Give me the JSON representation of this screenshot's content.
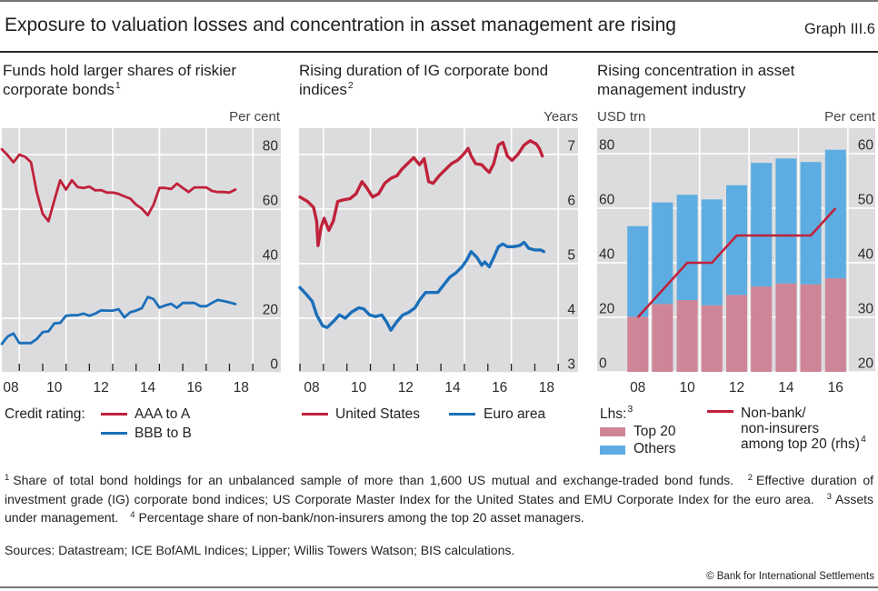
{
  "header": {
    "title": "Exposure to valuation losses and concentration in asset management are rising",
    "graph_id": "Graph III.6"
  },
  "panels": [
    {
      "title_lines": [
        "Funds hold larger shares of riskier",
        "corporate bonds"
      ],
      "title_sup": "1",
      "unit_right": "Per cent"
    },
    {
      "title_lines": [
        "Rising duration of IG corporate bond",
        "indices"
      ],
      "title_sup": "2",
      "unit_right": "Years"
    },
    {
      "title_lines": [
        "Rising concentration in asset",
        "management industry"
      ],
      "title_sup": "",
      "unit_left": "USD trn",
      "unit_right": "Per cent"
    }
  ],
  "chart_data": [
    {
      "type": "line",
      "title": "Funds hold larger shares of riskier corporate bonds",
      "xlabel": "",
      "ylabel": "Per cent",
      "y_axis_side": "right",
      "xlim": [
        2008.25,
        2020.2
      ],
      "ylim": [
        0,
        89.7
      ],
      "yticks": [
        0,
        20,
        40,
        60,
        80
      ],
      "ytick_labels": [
        "0",
        "20",
        "40",
        "60",
        "80"
      ],
      "xgrid": [
        2009,
        2011,
        2013,
        2015,
        2017,
        2019
      ],
      "xticks": [
        2009,
        2010,
        2011,
        2012,
        2013,
        2014,
        2015,
        2016,
        2017,
        2018,
        2019
      ],
      "xtick_labels": [
        "08",
        "10",
        "12",
        "14",
        "16",
        "18"
      ],
      "xtick_positions": [
        2008.5,
        2010.5,
        2012.5,
        2014.5,
        2016.5,
        2018.5
      ],
      "grid": true,
      "legend": {
        "title": "Credit rating:",
        "position": "bottom-left"
      },
      "x": [
        2008.25,
        2008.5,
        2008.75,
        2009,
        2009.25,
        2009.5,
        2009.75,
        2010,
        2010.25,
        2010.5,
        2010.75,
        2011,
        2011.25,
        2011.5,
        2011.75,
        2012,
        2012.25,
        2012.5,
        2012.75,
        2013,
        2013.25,
        2013.5,
        2013.75,
        2014,
        2014.25,
        2014.5,
        2014.75,
        2015,
        2015.25,
        2015.5,
        2015.75,
        2016,
        2016.25,
        2016.5,
        2016.75,
        2017,
        2017.25,
        2017.5,
        2017.75,
        2018,
        2018.25
      ],
      "series": [
        {
          "name": "AAA to A",
          "color": "#c0213a",
          "values": [
            82,
            79.8,
            77.2,
            80,
            79.2,
            77.2,
            66.1,
            58.3,
            55.6,
            63.3,
            70.6,
            67.2,
            70.6,
            68.1,
            67.8,
            68.3,
            66.9,
            67.0,
            66.1,
            66.1,
            65.6,
            64.7,
            63.9,
            61.7,
            60.2,
            57.8,
            61.7,
            67.8,
            67.8,
            67.4,
            69.4,
            67.8,
            66.3,
            68.0,
            68.0,
            68.0,
            66.7,
            66.3,
            66.3,
            66.1,
            67.2
          ]
        },
        {
          "name": "BBB to B",
          "color": "#1b6fba",
          "values": [
            10.6,
            13.3,
            14.4,
            10.9,
            10.9,
            10.9,
            12.4,
            14.9,
            15.2,
            18.1,
            18.3,
            20.9,
            21.1,
            21.1,
            21.7,
            20.9,
            21.7,
            22.9,
            22.8,
            22.8,
            23.3,
            20.3,
            22.2,
            22.8,
            23.7,
            27.8,
            27.0,
            23.9,
            24.7,
            25.3,
            23.8,
            25.6,
            25.6,
            25.6,
            24.4,
            24.4,
            25.6,
            26.7,
            26.3,
            25.8,
            25.2
          ]
        }
      ]
    },
    {
      "type": "line",
      "title": "Rising duration of IG corporate bond indices",
      "xlabel": "",
      "ylabel": "Years",
      "y_axis_side": "right",
      "xlim": [
        2007.96,
        2019.84
      ],
      "ylim": [
        3,
        7.48
      ],
      "yticks": [
        3,
        4,
        5,
        6,
        7
      ],
      "ytick_labels": [
        "3",
        "4",
        "5",
        "6",
        "7"
      ],
      "xgrid": [
        2009,
        2011,
        2013,
        2015,
        2017,
        2019
      ],
      "xticks": [
        2008,
        2009,
        2010,
        2011,
        2012,
        2013,
        2014,
        2015,
        2016,
        2017,
        2018,
        2019
      ],
      "xtick_labels": [
        "08",
        "10",
        "12",
        "14",
        "16",
        "18"
      ],
      "xtick_positions": [
        2008.5,
        2010.5,
        2012.5,
        2014.5,
        2016.5,
        2018.5
      ],
      "grid": true,
      "legend": {
        "position": "bottom"
      },
      "series": [
        {
          "name": "United States",
          "color": "#c0213a",
          "x": [
            2008.0,
            2008.32,
            2008.58,
            2008.71,
            2008.77,
            2008.9,
            2009.03,
            2009.23,
            2009.42,
            2009.61,
            2009.87,
            2010.13,
            2010.39,
            2010.64,
            2010.84,
            2011.09,
            2011.35,
            2011.61,
            2011.87,
            2012.13,
            2012.32,
            2012.58,
            2012.84,
            2013.09,
            2013.29,
            2013.48,
            2013.67,
            2013.93,
            2014.19,
            2014.45,
            2014.7,
            2014.96,
            2015.16,
            2015.29,
            2015.48,
            2015.74,
            2015.93,
            2016.06,
            2016.25,
            2016.45,
            2016.64,
            2016.83,
            2017.03,
            2017.28,
            2017.54,
            2017.8,
            2018.06,
            2018.19,
            2018.32
          ],
          "values": [
            6.22,
            6.14,
            6.03,
            5.78,
            5.33,
            5.67,
            5.83,
            5.61,
            5.78,
            6.14,
            6.17,
            6.19,
            6.28,
            6.5,
            6.39,
            6.22,
            6.28,
            6.47,
            6.56,
            6.61,
            6.72,
            6.83,
            6.94,
            6.81,
            6.92,
            6.5,
            6.47,
            6.61,
            6.72,
            6.83,
            6.89,
            7.0,
            7.11,
            6.97,
            6.83,
            6.81,
            6.72,
            6.67,
            6.83,
            7.17,
            7.22,
            6.97,
            6.89,
            7.0,
            7.17,
            7.25,
            7.19,
            7.11,
            6.97
          ]
        },
        {
          "name": "Euro area",
          "color": "#1b6fba",
          "x": [
            2008.0,
            2008.26,
            2008.52,
            2008.71,
            2008.97,
            2009.16,
            2009.42,
            2009.68,
            2009.93,
            2010.19,
            2010.51,
            2010.71,
            2010.97,
            2011.22,
            2011.48,
            2011.68,
            2011.87,
            2012.13,
            2012.38,
            2012.64,
            2012.9,
            2013.09,
            2013.35,
            2013.61,
            2013.87,
            2014.12,
            2014.38,
            2014.64,
            2014.9,
            2015.09,
            2015.29,
            2015.54,
            2015.74,
            2015.87,
            2016.06,
            2016.25,
            2016.45,
            2016.64,
            2016.83,
            2017.09,
            2017.35,
            2017.54,
            2017.74,
            2017.99,
            2018.25,
            2018.38
          ],
          "values": [
            4.56,
            4.44,
            4.31,
            4.06,
            3.86,
            3.83,
            3.94,
            4.06,
            4.0,
            4.11,
            4.19,
            4.17,
            4.06,
            4.03,
            4.06,
            3.94,
            3.78,
            3.94,
            4.06,
            4.11,
            4.19,
            4.33,
            4.47,
            4.47,
            4.47,
            4.61,
            4.75,
            4.83,
            4.94,
            5.06,
            5.22,
            5.11,
            4.97,
            5.03,
            4.94,
            5.11,
            5.31,
            5.36,
            5.31,
            5.31,
            5.33,
            5.39,
            5.28,
            5.25,
            5.25,
            5.22
          ]
        }
      ]
    },
    {
      "type": "bar",
      "stacked": true,
      "title": "Rising concentration in asset management industry",
      "xlabel": "",
      "ylabel_left": "USD trn",
      "ylabel_right": "Per cent",
      "categories": [
        "2008",
        "2009",
        "2010",
        "2011",
        "2012",
        "2013",
        "2014",
        "2015",
        "2016"
      ],
      "xtick_labels": [
        "08",
        "",
        "10",
        "",
        "12",
        "",
        "14",
        "",
        "16"
      ],
      "ylim_left": [
        0,
        89.3
      ],
      "ylim_right": [
        20,
        64.67
      ],
      "yticks_left": [
        0,
        20,
        40,
        60,
        80
      ],
      "ytick_labels_left": [
        "0",
        "20",
        "40",
        "60",
        "80"
      ],
      "yticks_right": [
        20,
        30,
        40,
        50,
        60
      ],
      "ytick_labels_right": [
        "20",
        "30",
        "40",
        "50",
        "60"
      ],
      "grid": true,
      "legend": {
        "lhs_label": "Lhs:",
        "lhs_sup": "3",
        "line_label_lines": [
          "Non-bank/",
          "non-insurers",
          "among top 20 (rhs)"
        ],
        "line_sup": "4",
        "position": "bottom"
      },
      "series": [
        {
          "name": "Top 20",
          "type": "bar",
          "axis": "left",
          "color": "#cf8598",
          "values": [
            20.2,
            24.9,
            26.3,
            24.4,
            28.2,
            31.3,
            32.4,
            32.1,
            34.3
          ]
        },
        {
          "name": "Others",
          "type": "bar",
          "axis": "left",
          "color": "#5dade2",
          "values": [
            33.2,
            37.2,
            38.6,
            38.8,
            40.2,
            45.3,
            45.8,
            44.8,
            47.1
          ]
        },
        {
          "name": "Non-bank/non-insurers among top 20 (rhs)",
          "type": "line",
          "axis": "right",
          "color": "#c0213a",
          "values": [
            30,
            35,
            40,
            40,
            45,
            45,
            45,
            45,
            50
          ]
        }
      ]
    }
  ],
  "footnotes": [
    {
      "num": "1",
      "text": "Share of total bond holdings for an unbalanced sample of more than 1,600 US mutual and exchange-traded bond funds."
    },
    {
      "num": "2",
      "text": "Effective duration of investment grade (IG) corporate bond indices; US Corporate Master Index for the United States and EMU Corporate Index for the euro area."
    },
    {
      "num": "3",
      "text": "Assets under management."
    },
    {
      "num": "4",
      "text": "Percentage share of non-bank/non-insurers among the top 20 asset managers."
    }
  ],
  "sources": "Sources: Datastream; ICE BofAML Indices; Lipper; Willis Towers Watson; BIS calculations.",
  "copyright": "© Bank for International Settlements"
}
